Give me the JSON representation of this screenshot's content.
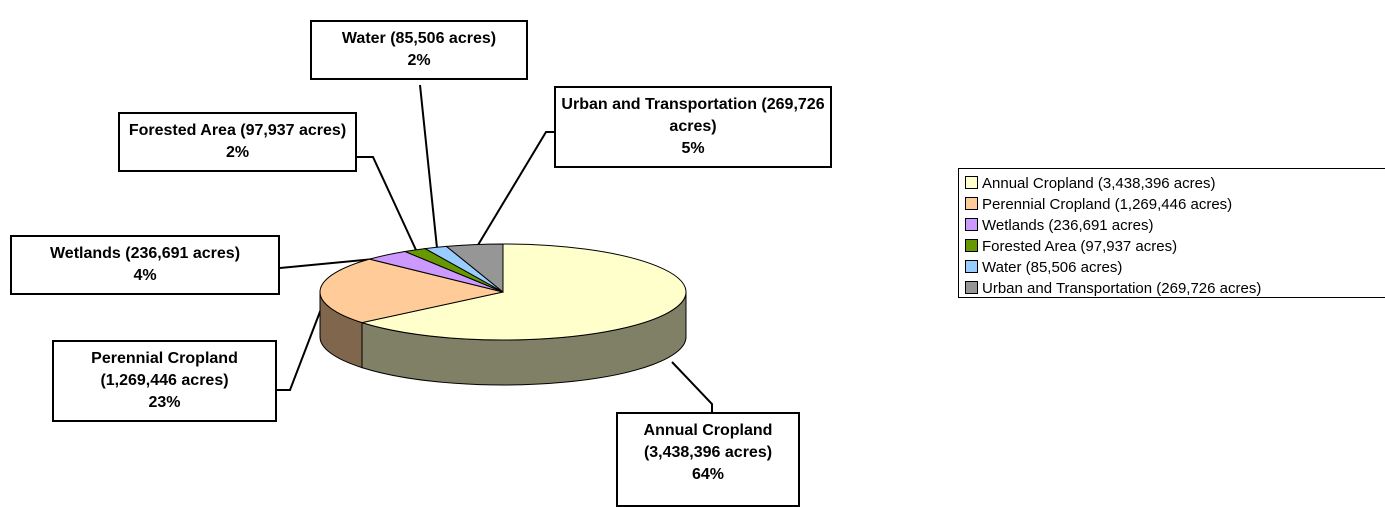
{
  "chart_data": {
    "type": "pie",
    "categories": [
      "Annual Cropland (3,438,396 acres)",
      "Perennial Cropland (1,269,446 acres)",
      "Wetlands (236,691 acres)",
      "Forested Area (97,937 acres)",
      "Water (85,506 acres)",
      "Urban and Transportation (269,726 acres)"
    ],
    "values": [
      64,
      23,
      4,
      2,
      2,
      5
    ],
    "value_labels": [
      "64%",
      "23%",
      "4%",
      "2%",
      "2%",
      "5%"
    ],
    "colors": [
      "#ffffcc",
      "#ffcc99",
      "#cc99ff",
      "#669900",
      "#99ccff",
      "#969696"
    ],
    "legend": "right"
  }
}
